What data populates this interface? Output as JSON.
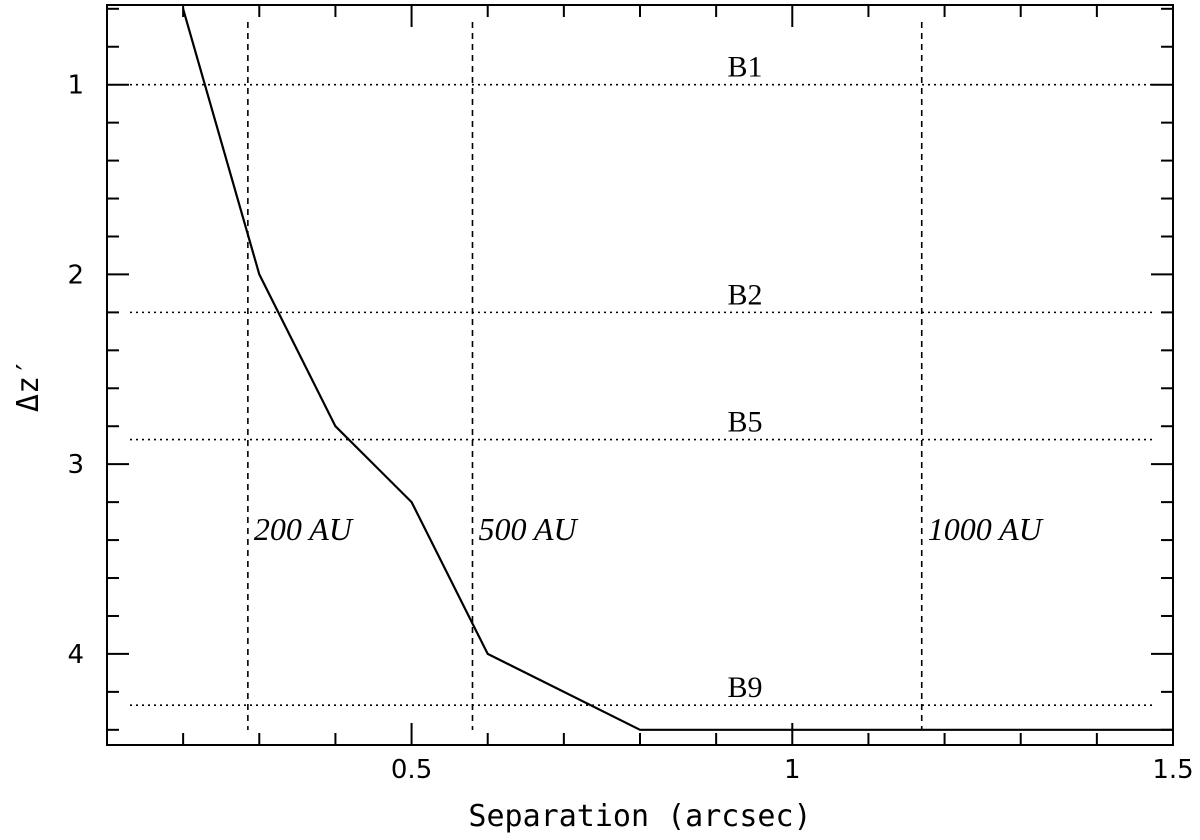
{
  "chart_data": {
    "type": "line",
    "xlabel": "Separation (arcsec)",
    "ylabel": "Δz′",
    "xlim": [
      0.1,
      1.5
    ],
    "ylim": [
      4.48,
      0.58
    ],
    "y_inverted": true,
    "x_ticks": [
      0.5,
      1,
      1.5
    ],
    "x_tick_labels": [
      "0.5",
      "1",
      "1.5"
    ],
    "y_ticks": [
      1,
      2,
      3,
      4
    ],
    "y_tick_labels": [
      "1",
      "2",
      "3",
      "4"
    ],
    "grid": false,
    "series": [
      {
        "x": [
          0.2,
          0.3,
          0.4,
          0.5,
          0.6,
          0.8,
          1.0,
          1.2,
          1.5
        ],
        "y": [
          0.6,
          2.0,
          2.8,
          3.2,
          4.0,
          4.4,
          4.4,
          4.4,
          4.4
        ],
        "color": "#000000",
        "style": "solid"
      }
    ],
    "horizontal_reference_lines": [
      {
        "label": "B1",
        "y": 1.0
      },
      {
        "label": "B2",
        "y": 2.2
      },
      {
        "label": "B5",
        "y": 2.87
      },
      {
        "label": "B9",
        "y": 4.27
      }
    ],
    "vertical_reference_lines": [
      {
        "label": "200 AU",
        "x": 0.285
      },
      {
        "label": "500 AU",
        "x": 0.58
      },
      {
        "label": "1000 AU",
        "x": 1.17
      }
    ]
  }
}
